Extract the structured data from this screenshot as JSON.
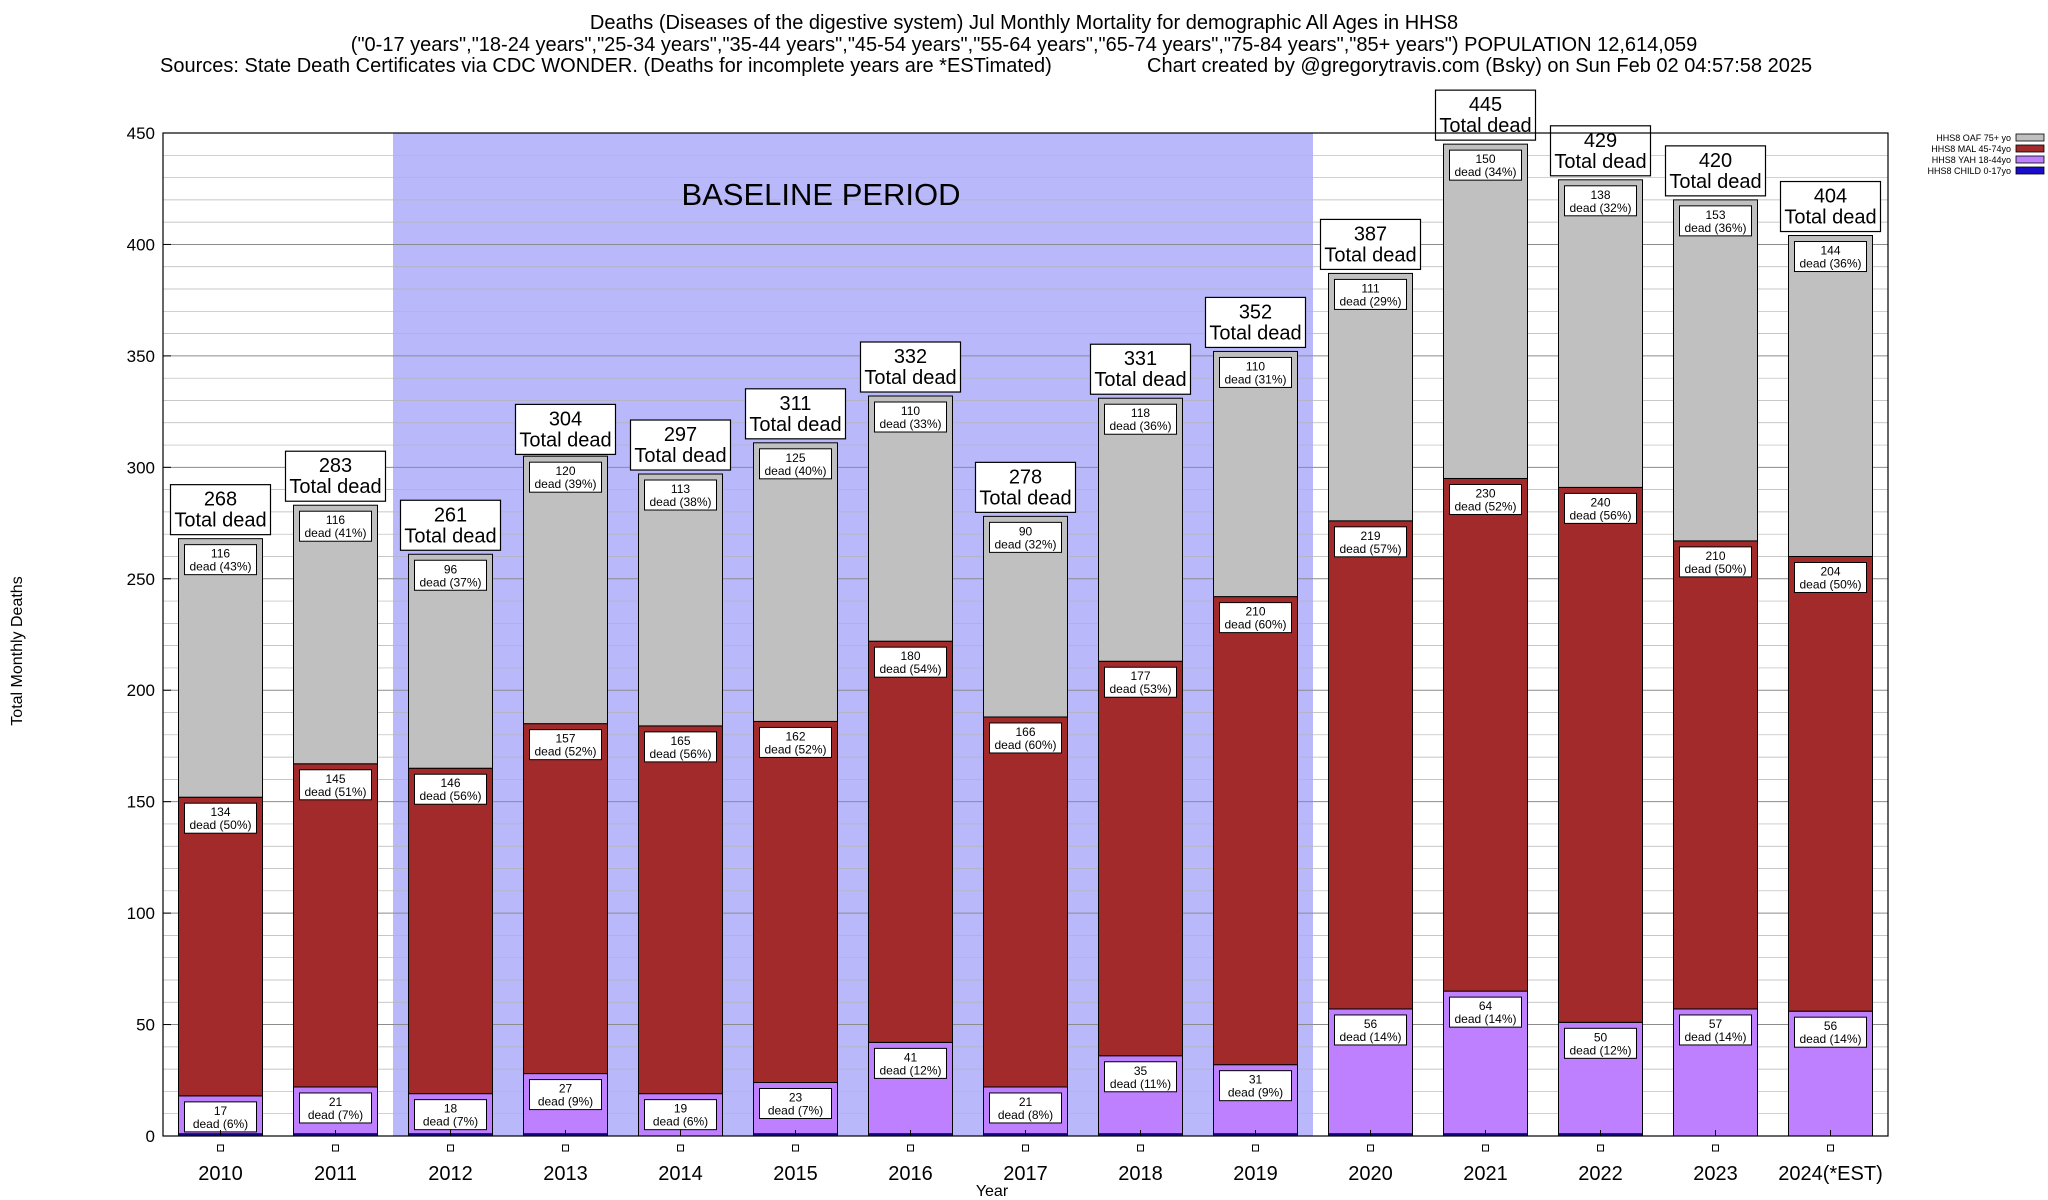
{
  "header": {
    "title": "Deaths (Diseases of the digestive system) Jul Monthly Mortality for demographic All Ages in HHS8",
    "subtitle": "(\"0-17 years\",\"18-24 years\",\"25-34 years\",\"35-44 years\",\"45-54 years\",\"55-64 years\",\"65-74 years\",\"75-84 years\",\"85+ years\") POPULATION 12,614,059",
    "sources": "Sources: State Death Certificates via CDC WONDER. (Deaths for incomplete years are *ESTimated)",
    "credit": "Chart created by @gregorytravis.com (Bsky) on Sun Feb 02 04:57:58 2025"
  },
  "chart_data": {
    "type": "bar",
    "stacked": true,
    "xlabel": "Year",
    "ylabel": "Total Monthly Deaths",
    "ylim": [
      0,
      450
    ],
    "yticks": [
      0,
      50,
      100,
      150,
      200,
      250,
      300,
      350,
      400,
      450
    ],
    "grid": true,
    "legend_position": "top-right",
    "baseline_label": "BASELINE PERIOD",
    "baseline_range": [
      "2012",
      "2019"
    ],
    "baseline_color": "#b8b8fa",
    "total_label_suffix": "Total dead",
    "segment_label_word": "dead",
    "categories": [
      "2010",
      "2011",
      "2012",
      "2013",
      "2014",
      "2015",
      "2016",
      "2017",
      "2018",
      "2019",
      "2020",
      "2021",
      "2022",
      "2023",
      "2024(*EST)"
    ],
    "totals": [
      268,
      283,
      261,
      304,
      297,
      311,
      332,
      278,
      331,
      352,
      387,
      445,
      429,
      420,
      404
    ],
    "series": [
      {
        "name": "HHS8 CHILD 0-17yo",
        "color": "#1a0ccc",
        "values": [
          1,
          1,
          1,
          1,
          0,
          1,
          1,
          1,
          1,
          1,
          1,
          1,
          1,
          0,
          0
        ],
        "labels": []
      },
      {
        "name": "HHS8 YAH 18-44yo",
        "color": "#bf80ff",
        "values": [
          17,
          21,
          18,
          27,
          19,
          23,
          41,
          21,
          35,
          31,
          56,
          64,
          50,
          57,
          56
        ],
        "labels": [
          "17|6%",
          "21|7%",
          "18|7%",
          "27|9%",
          "19|6%",
          "23|7%",
          "41|12%",
          "21|8%",
          "35|11%",
          "31|9%",
          "56|14%",
          "64|14%",
          "50|12%",
          "57|14%",
          "56|14%"
        ]
      },
      {
        "name": "HHS8 MAL 45-74yo",
        "color": "#a32a2a",
        "values": [
          134,
          145,
          146,
          157,
          165,
          162,
          180,
          166,
          177,
          210,
          219,
          230,
          240,
          210,
          204
        ],
        "labels": [
          "134|50%",
          "145|51%",
          "146|56%",
          "157|52%",
          "165|56%",
          "162|52%",
          "180|54%",
          "166|60%",
          "177|53%",
          "210|60%",
          "219|57%",
          "230|52%",
          "240|56%",
          "210|50%",
          "204|50%"
        ]
      },
      {
        "name": "HHS8 OAF 75+ yo",
        "color": "#c0c0c0",
        "values": [
          116,
          116,
          96,
          120,
          113,
          125,
          110,
          90,
          118,
          110,
          111,
          150,
          138,
          153,
          144
        ],
        "labels": [
          "116|43%",
          "116|41%",
          "96|37%",
          "120|39%",
          "113|38%",
          "125|40%",
          "110|33%",
          "90|32%",
          "118|36%",
          "110|31%",
          "111|29%",
          "150|34%",
          "138|32%",
          "153|36%",
          "144|36%"
        ]
      }
    ]
  }
}
